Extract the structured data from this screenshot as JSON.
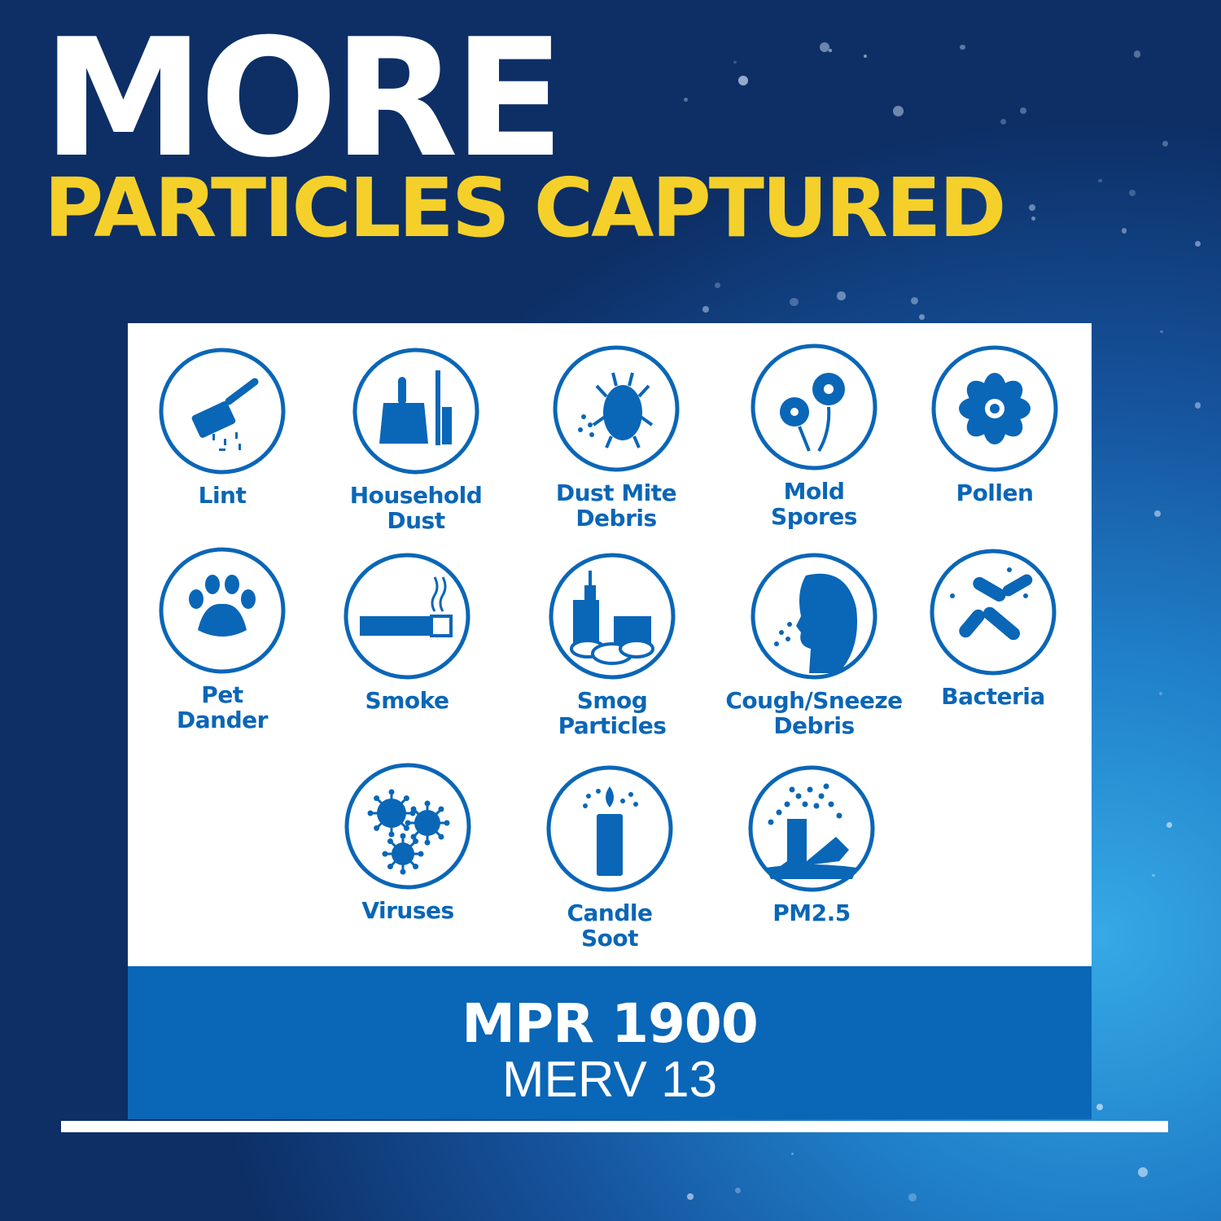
{
  "headline": {
    "line1": "MORE",
    "line2": "PARTICLES CAPTURED"
  },
  "items": [
    {
      "label1": "Lint",
      "label2": "",
      "icon": "lint-roller-icon"
    },
    {
      "label1": "Household",
      "label2": "Dust",
      "icon": "dustpan-icon"
    },
    {
      "label1": "Dust Mite",
      "label2": "Debris",
      "icon": "dust-mite-icon"
    },
    {
      "label1": "Mold",
      "label2": "Spores",
      "icon": "mold-flower-icon"
    },
    {
      "label1": "Pollen",
      "label2": "",
      "icon": "pollen-icon"
    },
    {
      "label1": "Pet",
      "label2": "Dander",
      "icon": "paw-icon"
    },
    {
      "label1": "Smoke",
      "label2": "",
      "icon": "cigarette-icon"
    },
    {
      "label1": "Smog",
      "label2": "Particles",
      "icon": "smog-city-icon"
    },
    {
      "label1": "Cough/Sneeze",
      "label2": "Debris",
      "icon": "sneeze-face-icon"
    },
    {
      "label1": "Bacteria",
      "label2": "",
      "icon": "bacteria-icon"
    },
    {
      "label1": "Viruses",
      "label2": "",
      "icon": "virus-icon"
    },
    {
      "label1": "Candle",
      "label2": "Soot",
      "icon": "candle-icon"
    },
    {
      "label1": "PM2.5",
      "label2": "",
      "icon": "smokestack-icon"
    }
  ],
  "rating": {
    "mpr": "MPR 1900",
    "merv": "MERV 13"
  },
  "colors": {
    "brand_blue": "#0a66b7",
    "headline_yellow": "#f5d02a",
    "headline_white": "#ffffff"
  }
}
